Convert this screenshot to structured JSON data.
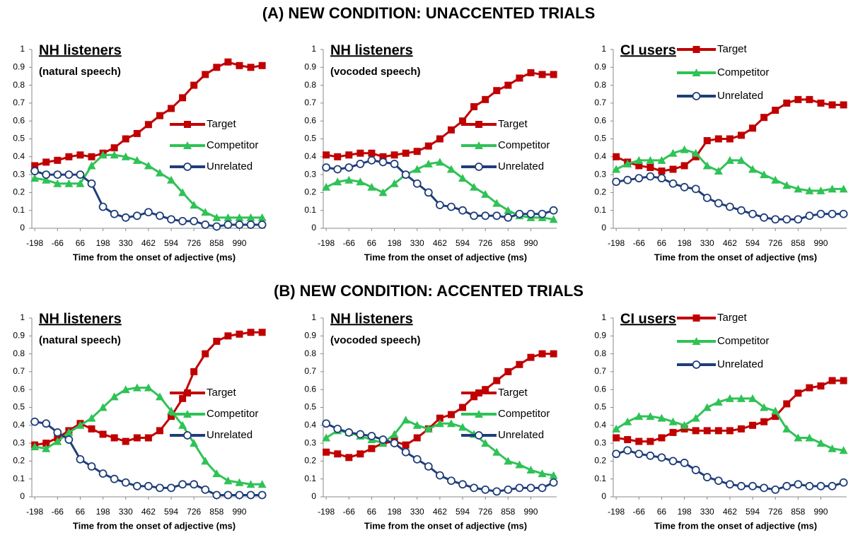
{
  "headings": [
    "(A) NEW CONDITION: UNACCENTED TRIALS",
    "(B) NEW CONDITION: ACCENTED TRIALS"
  ],
  "chart_data": [
    {
      "type": "line",
      "title": "NH listeners",
      "subtitle": "(natural speech)",
      "xlabel": "Time from the onset of adjective (ms)",
      "legend": "center right",
      "x": [
        -198,
        -132,
        -66,
        0,
        66,
        132,
        198,
        264,
        330,
        396,
        462,
        528,
        594,
        660,
        726,
        792,
        858,
        924,
        990,
        1056,
        1122
      ],
      "xlim": [
        -215,
        1140
      ],
      "xticks": [
        -198,
        -66,
        66,
        198,
        330,
        462,
        594,
        726,
        858,
        990
      ],
      "ylim": [
        0,
        1
      ],
      "yticks": [
        0,
        0.1,
        0.2,
        0.3,
        0.4,
        0.5,
        0.6,
        0.7,
        0.8,
        0.9,
        1
      ],
      "series": [
        {
          "name": "Target",
          "color": "#c00000",
          "marker": "square",
          "values": [
            0.35,
            0.37,
            0.38,
            0.4,
            0.41,
            0.4,
            0.42,
            0.45,
            0.5,
            0.53,
            0.58,
            0.63,
            0.67,
            0.73,
            0.8,
            0.86,
            0.9,
            0.93,
            0.91,
            0.9,
            0.91
          ]
        },
        {
          "name": "Competitor",
          "color": "#2fc256",
          "marker": "triangle",
          "values": [
            0.28,
            0.27,
            0.25,
            0.25,
            0.25,
            0.35,
            0.41,
            0.41,
            0.4,
            0.38,
            0.35,
            0.31,
            0.27,
            0.2,
            0.13,
            0.09,
            0.06,
            0.06,
            0.06,
            0.06,
            0.06
          ]
        },
        {
          "name": "Unrelated",
          "color": "#1f3d7a",
          "marker": "circle",
          "values": [
            0.32,
            0.3,
            0.3,
            0.3,
            0.3,
            0.25,
            0.12,
            0.08,
            0.06,
            0.07,
            0.09,
            0.07,
            0.05,
            0.04,
            0.04,
            0.02,
            0.01,
            0.02,
            0.02,
            0.02,
            0.02
          ]
        }
      ]
    },
    {
      "type": "line",
      "title": "NH listeners",
      "subtitle": "(vocoded speech)",
      "xlabel": "Time from the onset of adjective (ms)",
      "legend": "center right",
      "x": [
        -198,
        -132,
        -66,
        0,
        66,
        132,
        198,
        264,
        330,
        396,
        462,
        528,
        594,
        660,
        726,
        792,
        858,
        924,
        990,
        1056,
        1122
      ],
      "xlim": [
        -215,
        1140
      ],
      "xticks": [
        -198,
        -66,
        66,
        198,
        330,
        462,
        594,
        726,
        858,
        990
      ],
      "ylim": [
        0,
        1
      ],
      "yticks": [
        0,
        0.1,
        0.2,
        0.3,
        0.4,
        0.5,
        0.6,
        0.7,
        0.8,
        0.9,
        1
      ],
      "series": [
        {
          "name": "Target",
          "color": "#c00000",
          "marker": "square",
          "values": [
            0.41,
            0.4,
            0.41,
            0.42,
            0.42,
            0.4,
            0.41,
            0.42,
            0.43,
            0.46,
            0.5,
            0.55,
            0.6,
            0.68,
            0.72,
            0.77,
            0.8,
            0.84,
            0.87,
            0.86,
            0.86
          ]
        },
        {
          "name": "Competitor",
          "color": "#2fc256",
          "marker": "triangle",
          "values": [
            0.23,
            0.26,
            0.27,
            0.26,
            0.23,
            0.2,
            0.25,
            0.3,
            0.33,
            0.36,
            0.37,
            0.33,
            0.28,
            0.23,
            0.19,
            0.14,
            0.1,
            0.07,
            0.06,
            0.06,
            0.05
          ]
        },
        {
          "name": "Unrelated",
          "color": "#1f3d7a",
          "marker": "circle",
          "values": [
            0.34,
            0.33,
            0.34,
            0.36,
            0.38,
            0.37,
            0.36,
            0.3,
            0.25,
            0.2,
            0.13,
            0.12,
            0.1,
            0.07,
            0.07,
            0.07,
            0.06,
            0.08,
            0.08,
            0.08,
            0.1
          ]
        }
      ]
    },
    {
      "type": "line",
      "title": "CI users",
      "xlabel": "Time from the onset of adjective (ms)",
      "legend": "upper right",
      "x": [
        -198,
        -132,
        -66,
        0,
        66,
        132,
        198,
        264,
        330,
        396,
        462,
        528,
        594,
        660,
        726,
        792,
        858,
        924,
        990,
        1056,
        1122
      ],
      "xlim": [
        -215,
        1140
      ],
      "xticks": [
        -198,
        -66,
        66,
        198,
        330,
        462,
        594,
        726,
        858,
        990
      ],
      "ylim": [
        0,
        1
      ],
      "yticks": [
        0,
        0.1,
        0.2,
        0.3,
        0.4,
        0.5,
        0.6,
        0.7,
        0.8,
        0.9,
        1
      ],
      "series": [
        {
          "name": "Target",
          "color": "#c00000",
          "marker": "square",
          "values": [
            0.4,
            0.37,
            0.35,
            0.34,
            0.32,
            0.33,
            0.35,
            0.4,
            0.49,
            0.5,
            0.5,
            0.52,
            0.56,
            0.62,
            0.66,
            0.7,
            0.72,
            0.72,
            0.7,
            0.69,
            0.69
          ]
        },
        {
          "name": "Competitor",
          "color": "#2fc256",
          "marker": "triangle",
          "values": [
            0.33,
            0.36,
            0.38,
            0.38,
            0.38,
            0.42,
            0.44,
            0.42,
            0.35,
            0.32,
            0.38,
            0.38,
            0.33,
            0.3,
            0.27,
            0.24,
            0.22,
            0.21,
            0.21,
            0.22,
            0.22
          ]
        },
        {
          "name": "Unrelated",
          "color": "#1f3d7a",
          "marker": "circle",
          "values": [
            0.26,
            0.27,
            0.28,
            0.29,
            0.28,
            0.25,
            0.23,
            0.22,
            0.17,
            0.14,
            0.12,
            0.1,
            0.08,
            0.06,
            0.05,
            0.05,
            0.05,
            0.07,
            0.08,
            0.08,
            0.08
          ]
        }
      ]
    },
    {
      "type": "line",
      "title": "NH listeners",
      "subtitle": "(natural speech)",
      "xlabel": "Time from the onset of adjective (ms)",
      "legend": "center right",
      "x": [
        -198,
        -132,
        -66,
        0,
        66,
        132,
        198,
        264,
        330,
        396,
        462,
        528,
        594,
        660,
        726,
        792,
        858,
        924,
        990,
        1056,
        1122
      ],
      "xlim": [
        -215,
        1140
      ],
      "xticks": [
        -198,
        -66,
        66,
        198,
        330,
        462,
        594,
        726,
        858,
        990
      ],
      "ylim": [
        0,
        1
      ],
      "yticks": [
        0,
        0.1,
        0.2,
        0.3,
        0.4,
        0.5,
        0.6,
        0.7,
        0.8,
        0.9,
        1
      ],
      "series": [
        {
          "name": "Target",
          "color": "#c00000",
          "marker": "square",
          "values": [
            0.29,
            0.3,
            0.33,
            0.37,
            0.41,
            0.38,
            0.35,
            0.33,
            0.31,
            0.33,
            0.33,
            0.37,
            0.45,
            0.55,
            0.7,
            0.8,
            0.87,
            0.9,
            0.91,
            0.92,
            0.92
          ]
        },
        {
          "name": "Competitor",
          "color": "#2fc256",
          "marker": "triangle",
          "values": [
            0.28,
            0.27,
            0.31,
            0.36,
            0.4,
            0.44,
            0.5,
            0.56,
            0.6,
            0.61,
            0.61,
            0.56,
            0.48,
            0.4,
            0.3,
            0.2,
            0.13,
            0.09,
            0.08,
            0.07,
            0.07
          ]
        },
        {
          "name": "Unrelated",
          "color": "#1f3d7a",
          "marker": "circle",
          "values": [
            0.42,
            0.41,
            0.36,
            0.32,
            0.21,
            0.17,
            0.13,
            0.1,
            0.08,
            0.06,
            0.06,
            0.05,
            0.05,
            0.07,
            0.07,
            0.04,
            0.01,
            0.01,
            0.01,
            0.01,
            0.01
          ]
        }
      ]
    },
    {
      "type": "line",
      "title": "NH listeners",
      "subtitle": "(vocoded speech)",
      "xlabel": "Time from the onset of adjective (ms)",
      "legend": "center right",
      "x": [
        -198,
        -132,
        -66,
        0,
        66,
        132,
        198,
        264,
        330,
        396,
        462,
        528,
        594,
        660,
        726,
        792,
        858,
        924,
        990,
        1056,
        1122
      ],
      "xlim": [
        -215,
        1140
      ],
      "xticks": [
        -198,
        -66,
        66,
        198,
        330,
        462,
        594,
        726,
        858,
        990
      ],
      "ylim": [
        0,
        1
      ],
      "yticks": [
        0,
        0.1,
        0.2,
        0.3,
        0.4,
        0.5,
        0.6,
        0.7,
        0.8,
        0.9,
        1
      ],
      "series": [
        {
          "name": "Target",
          "color": "#c00000",
          "marker": "square",
          "values": [
            0.25,
            0.24,
            0.22,
            0.24,
            0.27,
            0.3,
            0.31,
            0.29,
            0.33,
            0.38,
            0.44,
            0.46,
            0.5,
            0.56,
            0.6,
            0.65,
            0.7,
            0.74,
            0.78,
            0.8,
            0.8
          ]
        },
        {
          "name": "Competitor",
          "color": "#2fc256",
          "marker": "triangle",
          "values": [
            0.33,
            0.37,
            0.36,
            0.34,
            0.32,
            0.3,
            0.35,
            0.43,
            0.4,
            0.38,
            0.41,
            0.41,
            0.39,
            0.35,
            0.3,
            0.25,
            0.2,
            0.18,
            0.15,
            0.13,
            0.12
          ]
        },
        {
          "name": "Unrelated",
          "color": "#1f3d7a",
          "marker": "circle",
          "values": [
            0.41,
            0.38,
            0.36,
            0.35,
            0.34,
            0.32,
            0.3,
            0.25,
            0.21,
            0.17,
            0.12,
            0.09,
            0.07,
            0.05,
            0.04,
            0.03,
            0.04,
            0.05,
            0.05,
            0.05,
            0.08
          ]
        }
      ]
    },
    {
      "type": "line",
      "title": "CI users",
      "xlabel": "Time from the onset of adjective (ms)",
      "legend": "upper right",
      "x": [
        -198,
        -132,
        -66,
        0,
        66,
        132,
        198,
        264,
        330,
        396,
        462,
        528,
        594,
        660,
        726,
        792,
        858,
        924,
        990,
        1056,
        1122
      ],
      "xlim": [
        -215,
        1140
      ],
      "xticks": [
        -198,
        -66,
        66,
        198,
        330,
        462,
        594,
        726,
        858,
        990
      ],
      "ylim": [
        0,
        1
      ],
      "yticks": [
        0,
        0.1,
        0.2,
        0.3,
        0.4,
        0.5,
        0.6,
        0.7,
        0.8,
        0.9,
        1
      ],
      "series": [
        {
          "name": "Target",
          "color": "#c00000",
          "marker": "square",
          "values": [
            0.33,
            0.32,
            0.31,
            0.31,
            0.33,
            0.36,
            0.38,
            0.37,
            0.37,
            0.37,
            0.37,
            0.38,
            0.4,
            0.42,
            0.45,
            0.52,
            0.58,
            0.61,
            0.62,
            0.65,
            0.65
          ]
        },
        {
          "name": "Competitor",
          "color": "#2fc256",
          "marker": "triangle",
          "values": [
            0.38,
            0.42,
            0.45,
            0.45,
            0.44,
            0.42,
            0.4,
            0.44,
            0.5,
            0.53,
            0.55,
            0.55,
            0.55,
            0.5,
            0.48,
            0.38,
            0.33,
            0.33,
            0.3,
            0.27,
            0.26
          ]
        },
        {
          "name": "Unrelated",
          "color": "#1f3d7a",
          "marker": "circle",
          "values": [
            0.24,
            0.26,
            0.24,
            0.23,
            0.22,
            0.2,
            0.19,
            0.15,
            0.11,
            0.09,
            0.07,
            0.06,
            0.06,
            0.05,
            0.04,
            0.06,
            0.07,
            0.06,
            0.06,
            0.06,
            0.08
          ]
        }
      ]
    }
  ]
}
